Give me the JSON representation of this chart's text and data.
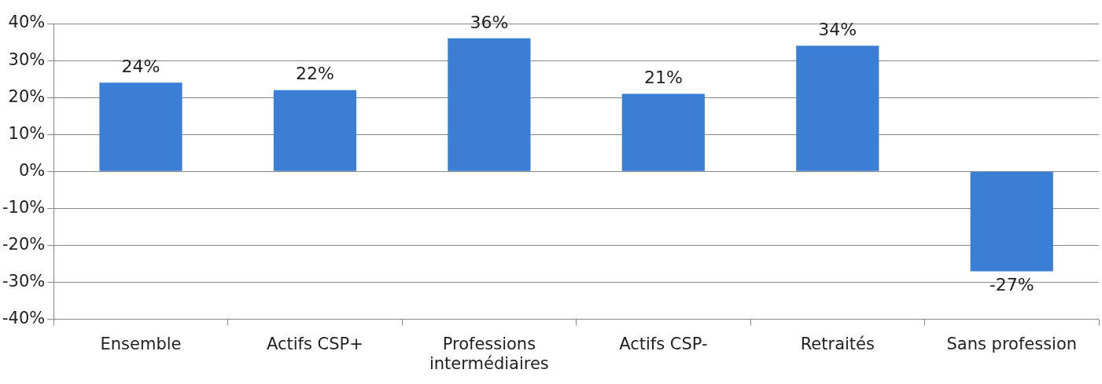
{
  "chart_data": {
    "type": "bar",
    "categories": [
      "Ensemble",
      "Actifs CSP+",
      "Professions intermédiaires",
      "Actifs CSP-",
      "Retraités",
      "Sans profession"
    ],
    "values": [
      24,
      22,
      36,
      21,
      34,
      -27
    ],
    "value_labels": [
      "24%",
      "22%",
      "36%",
      "21%",
      "34%",
      "-27%"
    ],
    "color": "#3a7fd5",
    "ylim": [
      -40,
      40
    ],
    "yticks": [
      {
        "value": -40,
        "label": "-40%"
      },
      {
        "value": -30,
        "label": "-30%"
      },
      {
        "value": -20,
        "label": "-20%"
      },
      {
        "value": -10,
        "label": "-10%"
      },
      {
        "value": 0,
        "label": "0%"
      },
      {
        "value": 10,
        "label": "10%"
      },
      {
        "value": 20,
        "label": "20%"
      },
      {
        "value": 30,
        "label": "30%"
      },
      {
        "value": 40,
        "label": "40%"
      }
    ],
    "grid": "y",
    "legend": false
  }
}
